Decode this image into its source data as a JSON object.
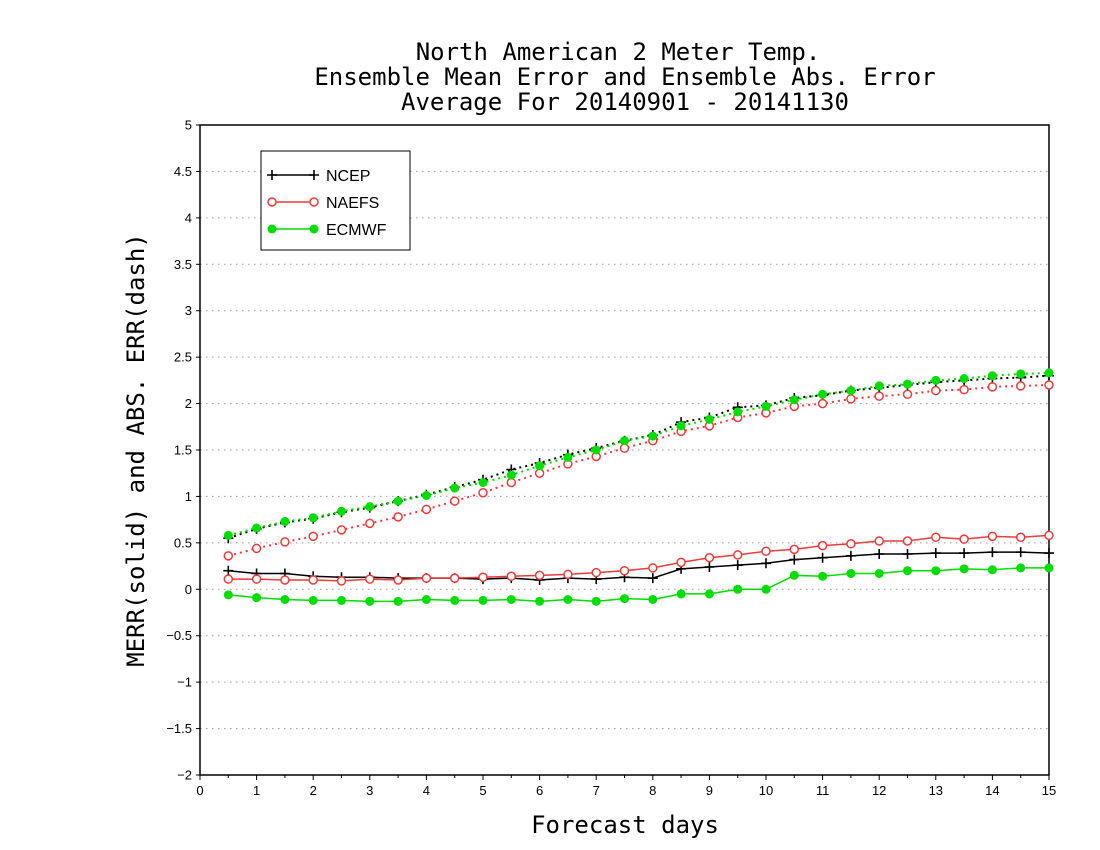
{
  "chart_data": {
    "type": "line",
    "title_lines": [
      "North American 2 Meter Temp.",
      "Ensemble Mean Error and Ensemble Abs. Error",
      "Average For 20140901 - 20141130"
    ],
    "xlabel": "Forecast days",
    "ylabel": "MERR(solid) and ABS. ERR(dash)",
    "xlim": [
      0,
      15
    ],
    "ylim": [
      -2,
      5
    ],
    "xticks": [
      "0",
      "1",
      "2",
      "3",
      "4",
      "5",
      "6",
      "7",
      "8",
      "9",
      "10",
      "11",
      "12",
      "13",
      "14",
      "15"
    ],
    "yticks": [
      "−2",
      "−1.5",
      "−1",
      "−0.5",
      "0",
      "0.5",
      "1",
      "1.5",
      "2",
      "2.5",
      "3",
      "3.5",
      "4",
      "4.5",
      "5"
    ],
    "ytick_values": [
      -2,
      -1.5,
      -1,
      -0.5,
      0,
      0.5,
      1,
      1.5,
      2,
      2.5,
      3,
      3.5,
      4,
      4.5,
      5
    ],
    "grid": "horizontal dotted",
    "legend_position": "top-left",
    "x": [
      0.5,
      1,
      1.5,
      2,
      2.5,
      3,
      3.5,
      4,
      4.5,
      5,
      5.5,
      6,
      6.5,
      7,
      7.5,
      8,
      8.5,
      9,
      9.5,
      10,
      10.5,
      11,
      11.5,
      12,
      12.5,
      13,
      13.5,
      14,
      14.5,
      15
    ],
    "series": [
      {
        "name": "NCEP",
        "color": "#000000",
        "marker": "plus",
        "merr": [
          0.2,
          0.17,
          0.17,
          0.14,
          0.13,
          0.13,
          0.12,
          0.12,
          0.12,
          0.11,
          0.12,
          0.1,
          0.12,
          0.11,
          0.13,
          0.12,
          0.22,
          0.24,
          0.26,
          0.28,
          0.32,
          0.34,
          0.36,
          0.38,
          0.38,
          0.39,
          0.39,
          0.4,
          0.4,
          0.39
        ],
        "abs_err": [
          0.55,
          0.65,
          0.72,
          0.76,
          0.83,
          0.88,
          0.95,
          1.02,
          1.1,
          1.18,
          1.29,
          1.36,
          1.45,
          1.52,
          1.6,
          1.66,
          1.8,
          1.85,
          1.96,
          1.98,
          2.06,
          2.09,
          2.14,
          2.17,
          2.2,
          2.23,
          2.25,
          2.27,
          2.28,
          2.3
        ]
      },
      {
        "name": "NAEFS",
        "color": "#ee3a3a",
        "marker": "open-circle",
        "merr": [
          0.11,
          0.11,
          0.1,
          0.1,
          0.09,
          0.11,
          0.1,
          0.12,
          0.12,
          0.13,
          0.14,
          0.15,
          0.16,
          0.18,
          0.2,
          0.23,
          0.29,
          0.34,
          0.37,
          0.41,
          0.43,
          0.47,
          0.49,
          0.52,
          0.52,
          0.56,
          0.54,
          0.57,
          0.56,
          0.58
        ],
        "abs_err": [
          0.36,
          0.44,
          0.51,
          0.57,
          0.64,
          0.71,
          0.78,
          0.86,
          0.95,
          1.04,
          1.15,
          1.25,
          1.35,
          1.43,
          1.52,
          1.6,
          1.7,
          1.76,
          1.85,
          1.9,
          1.97,
          2.0,
          2.05,
          2.08,
          2.1,
          2.14,
          2.15,
          2.18,
          2.19,
          2.2
        ]
      },
      {
        "name": "ECMWF",
        "color": "#00dd00",
        "marker": "filled-circle",
        "merr": [
          -0.06,
          -0.09,
          -0.11,
          -0.12,
          -0.12,
          -0.13,
          -0.13,
          -0.11,
          -0.12,
          -0.12,
          -0.11,
          -0.13,
          -0.11,
          -0.13,
          -0.1,
          -0.11,
          -0.05,
          -0.05,
          0.0,
          0.0,
          0.15,
          0.14,
          0.17,
          0.17,
          0.2,
          0.2,
          0.22,
          0.21,
          0.23,
          0.23
        ],
        "abs_err": [
          0.58,
          0.66,
          0.73,
          0.77,
          0.84,
          0.89,
          0.95,
          1.01,
          1.09,
          1.15,
          1.23,
          1.33,
          1.42,
          1.5,
          1.6,
          1.65,
          1.76,
          1.83,
          1.91,
          1.97,
          2.04,
          2.1,
          2.14,
          2.19,
          2.21,
          2.25,
          2.27,
          2.3,
          2.32,
          2.33
        ]
      }
    ]
  }
}
